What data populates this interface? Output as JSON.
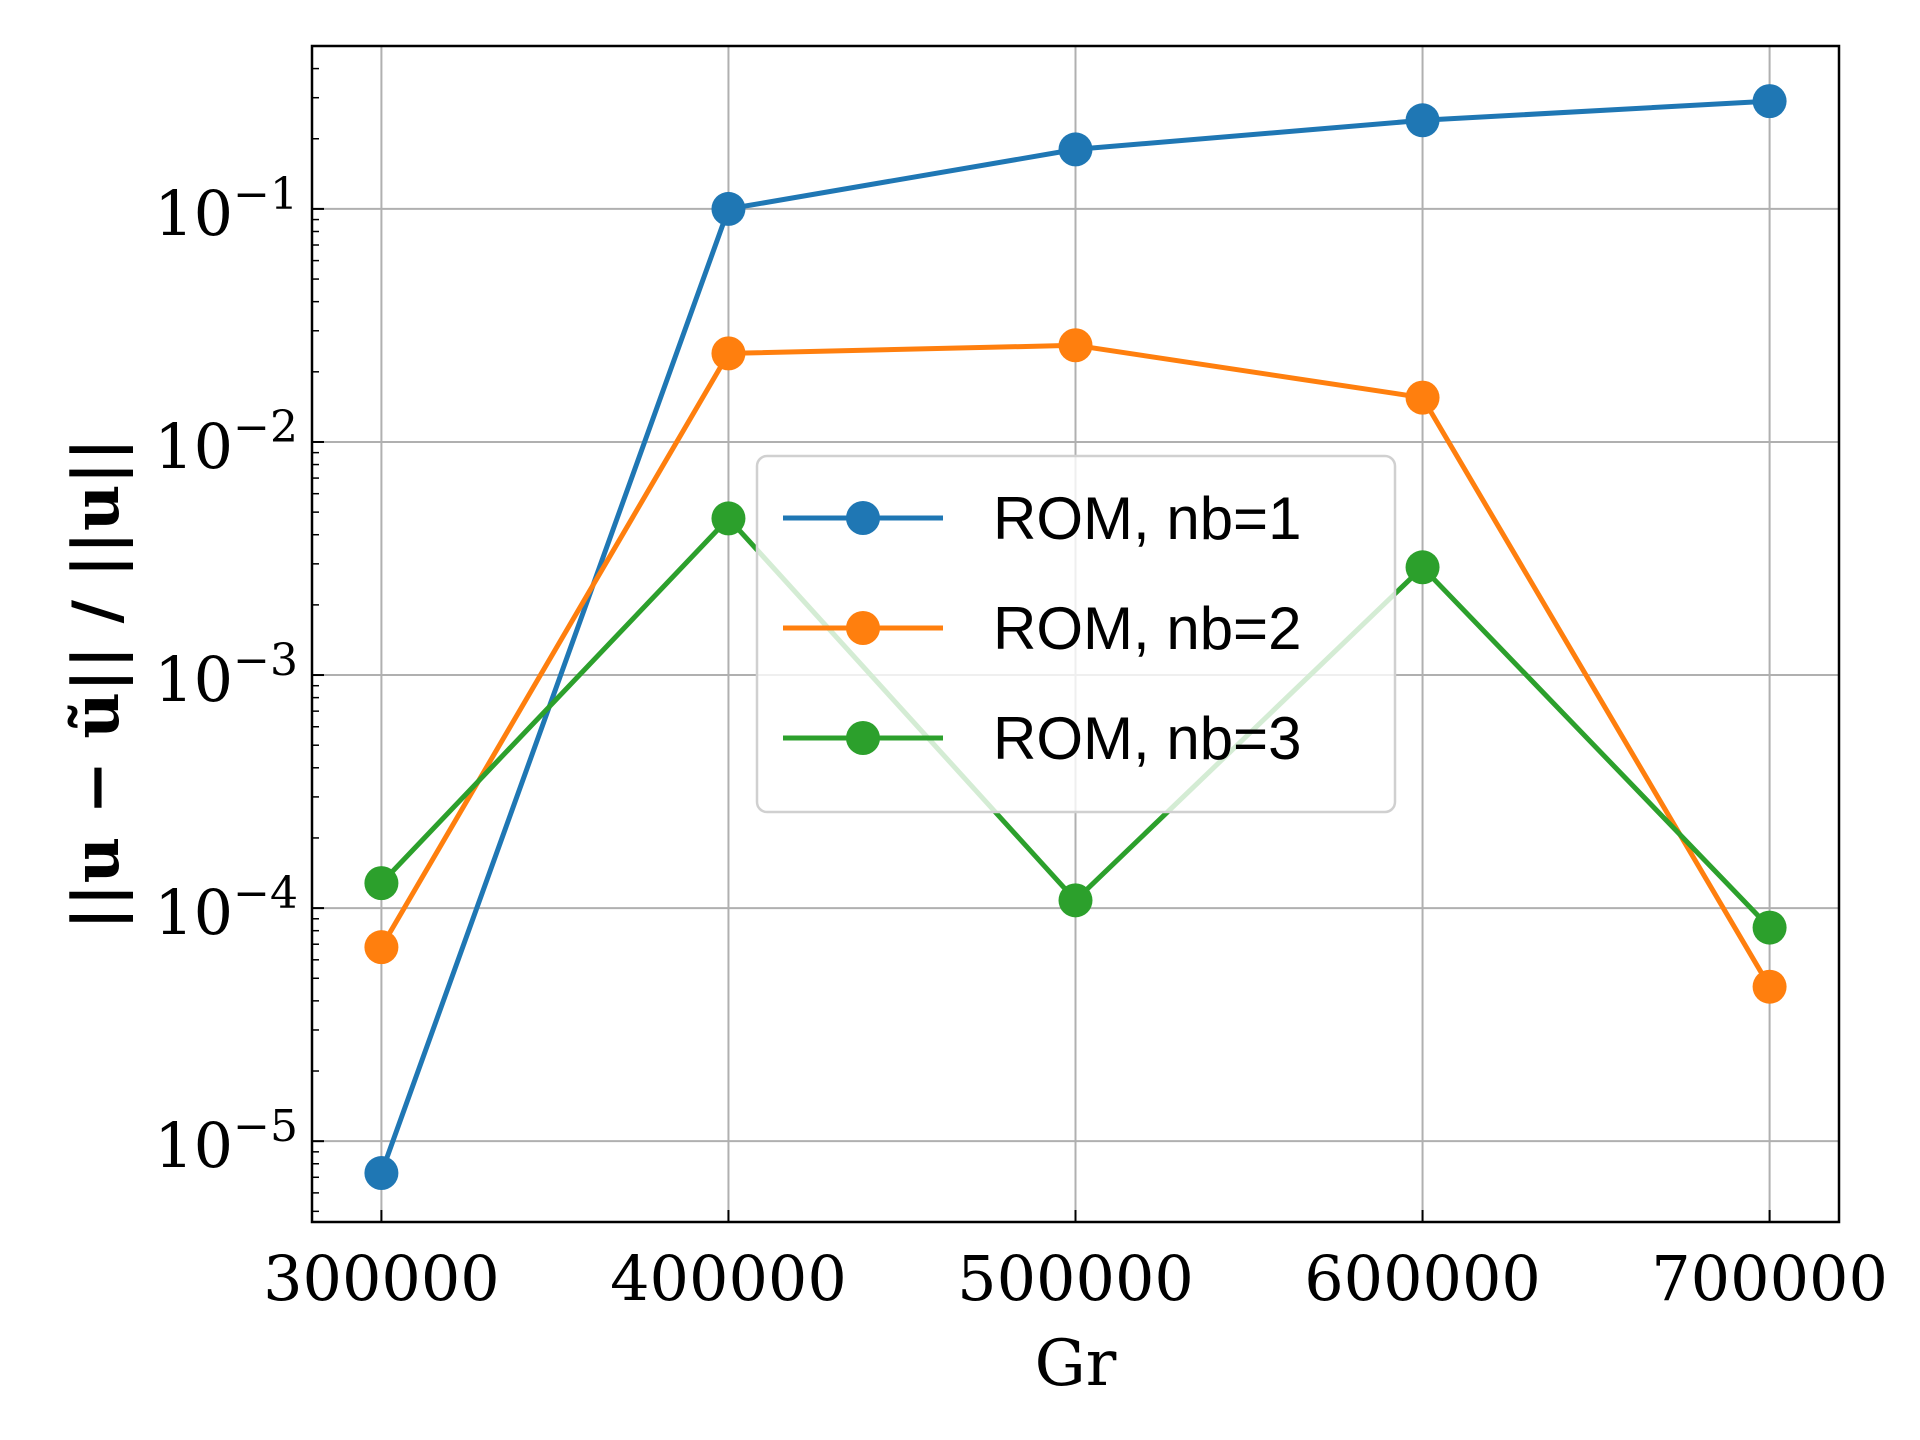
{
  "chart_data": {
    "type": "line",
    "title": "",
    "xlabel": "Gr",
    "ylabel": "||u − ũ|| / ||u||",
    "x": [
      300000,
      400000,
      500000,
      600000,
      700000
    ],
    "x_tick_labels": [
      "300000",
      "400000",
      "500000",
      "600000",
      "700000"
    ],
    "xlim": [
      280000,
      720000
    ],
    "yscale": "log",
    "ylim": [
      4.5e-06,
      0.5
    ],
    "y_ticks": [
      {
        "value": 1e-05,
        "base": "10",
        "exp": "−5"
      },
      {
        "value": 0.0001,
        "base": "10",
        "exp": "−4"
      },
      {
        "value": 0.001,
        "base": "10",
        "exp": "−3"
      },
      {
        "value": 0.01,
        "base": "10",
        "exp": "−2"
      },
      {
        "value": 0.1,
        "base": "10",
        "exp": "−1"
      }
    ],
    "grid": true,
    "legend_position": "center",
    "series": [
      {
        "name": "ROM, nb=1",
        "color": "#1f77b4",
        "values": [
          7.3e-06,
          0.1,
          0.18,
          0.24,
          0.29
        ]
      },
      {
        "name": "ROM, nb=2",
        "color": "#ff7f0e",
        "values": [
          6.8e-05,
          0.024,
          0.026,
          0.0155,
          4.6e-05
        ]
      },
      {
        "name": "ROM, nb=3",
        "color": "#2ca02c",
        "values": [
          0.000128,
          0.0047,
          0.000108,
          0.0029,
          8.25e-05
        ]
      }
    ]
  }
}
